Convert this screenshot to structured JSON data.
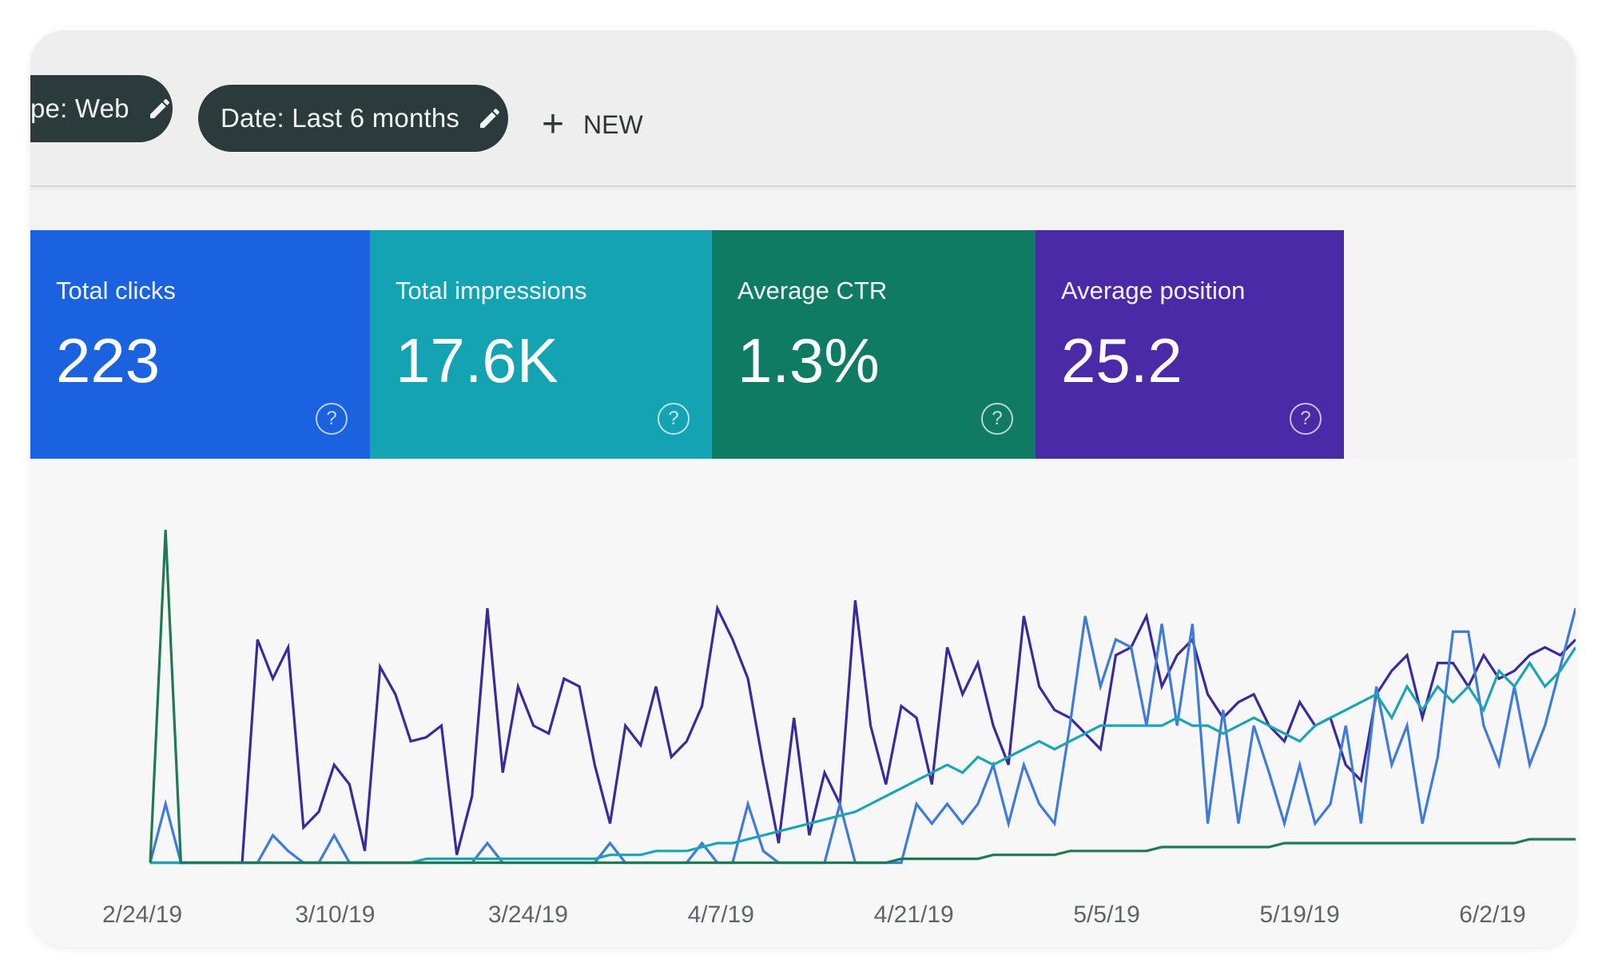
{
  "toolbar": {
    "chips": [
      {
        "label": "pe: Web",
        "icon": "pencil-icon"
      },
      {
        "label": "Date: Last 6 months",
        "icon": "pencil-icon"
      }
    ],
    "new_button": {
      "icon": "plus-icon",
      "label": "NEW"
    }
  },
  "cards": [
    {
      "label": "Total clicks",
      "value": "223",
      "color": "#1a62e0",
      "icon": "help-icon"
    },
    {
      "label": "Total impressions",
      "value": "17.6K",
      "color": "#14a3b2",
      "icon": "help-icon"
    },
    {
      "label": "Average CTR",
      "value": "1.3%",
      "color": "#0f7b63",
      "icon": "help-icon"
    },
    {
      "label": "Average position",
      "value": "25.2",
      "color": "#4a2aa6",
      "icon": "help-icon"
    }
  ],
  "chart_data": {
    "type": "line",
    "x_tick_labels": [
      "2/24/19",
      "3/10/19",
      "3/24/19",
      "4/7/19",
      "4/21/19",
      "5/5/19",
      "5/19/19",
      "6/2/19"
    ],
    "grid": false,
    "legend": "none",
    "series": [
      {
        "color": "#3c2a9a",
        "values": [
          5,
          5,
          5,
          5,
          5,
          5,
          5,
          62,
          52,
          60,
          14,
          18,
          30,
          25,
          8,
          55,
          48,
          36,
          37,
          40,
          7,
          22,
          70,
          28,
          50,
          40,
          38,
          52,
          50,
          30,
          15,
          40,
          35,
          50,
          32,
          36,
          45,
          70,
          62,
          52,
          30,
          10,
          42,
          12,
          28,
          20,
          72,
          40,
          25,
          45,
          42,
          25,
          60,
          48,
          56,
          40,
          30,
          68,
          50,
          44,
          42,
          38,
          34,
          58,
          60,
          68,
          50,
          58,
          62,
          48,
          42,
          46,
          48,
          40,
          36,
          46,
          40,
          42,
          30,
          26,
          48,
          54,
          58,
          42,
          56,
          56,
          50,
          58,
          52,
          54,
          58,
          60,
          58,
          62
        ]
      },
      {
        "color": "#3f7bd8",
        "values": [
          5,
          20,
          5,
          5,
          5,
          5,
          5,
          5,
          12,
          8,
          5,
          5,
          12,
          5,
          5,
          5,
          5,
          5,
          5,
          5,
          5,
          5,
          10,
          5,
          5,
          5,
          5,
          5,
          5,
          5,
          10,
          5,
          5,
          5,
          5,
          5,
          10,
          5,
          5,
          20,
          8,
          5,
          5,
          5,
          5,
          20,
          5,
          5,
          5,
          5,
          20,
          15,
          20,
          15,
          20,
          30,
          15,
          30,
          20,
          15,
          40,
          68,
          50,
          62,
          60,
          40,
          66,
          40,
          66,
          15,
          44,
          15,
          40,
          28,
          15,
          30,
          15,
          20,
          40,
          15,
          50,
          30,
          40,
          15,
          32,
          64,
          64,
          40,
          30,
          50,
          30,
          40,
          55,
          70
        ]
      },
      {
        "color": "#1aa5b5",
        "values": [
          5,
          5,
          5,
          5,
          5,
          5,
          5,
          5,
          5,
          5,
          5,
          5,
          5,
          5,
          5,
          5,
          5,
          5,
          6,
          6,
          6,
          6,
          6,
          6,
          6,
          6,
          6,
          6,
          6,
          6,
          7,
          7,
          7,
          8,
          8,
          8,
          9,
          10,
          10,
          11,
          12,
          13,
          14,
          15,
          16,
          17,
          18,
          20,
          22,
          24,
          26,
          28,
          30,
          28,
          32,
          30,
          32,
          34,
          36,
          34,
          36,
          38,
          40,
          40,
          40,
          40,
          40,
          42,
          40,
          40,
          38,
          40,
          42,
          40,
          38,
          36,
          40,
          42,
          44,
          46,
          48,
          42,
          50,
          44,
          50,
          46,
          50,
          44,
          54,
          50,
          56,
          50,
          54,
          60
        ]
      },
      {
        "color": "#1e7a54",
        "values": [
          5,
          90,
          5,
          5,
          5,
          5,
          5,
          5,
          5,
          5,
          5,
          5,
          5,
          5,
          5,
          5,
          5,
          5,
          5,
          5,
          5,
          5,
          5,
          5,
          5,
          5,
          5,
          5,
          5,
          5,
          5,
          5,
          5,
          5,
          5,
          5,
          5,
          5,
          5,
          5,
          5,
          5,
          5,
          5,
          5,
          5,
          5,
          5,
          5,
          6,
          6,
          6,
          6,
          6,
          6,
          7,
          7,
          7,
          7,
          7,
          8,
          8,
          8,
          8,
          8,
          8,
          9,
          9,
          9,
          9,
          9,
          9,
          9,
          9,
          10,
          10,
          10,
          10,
          10,
          10,
          10,
          10,
          10,
          10,
          10,
          10,
          10,
          10,
          10,
          10,
          11,
          11,
          11,
          11
        ]
      }
    ]
  }
}
